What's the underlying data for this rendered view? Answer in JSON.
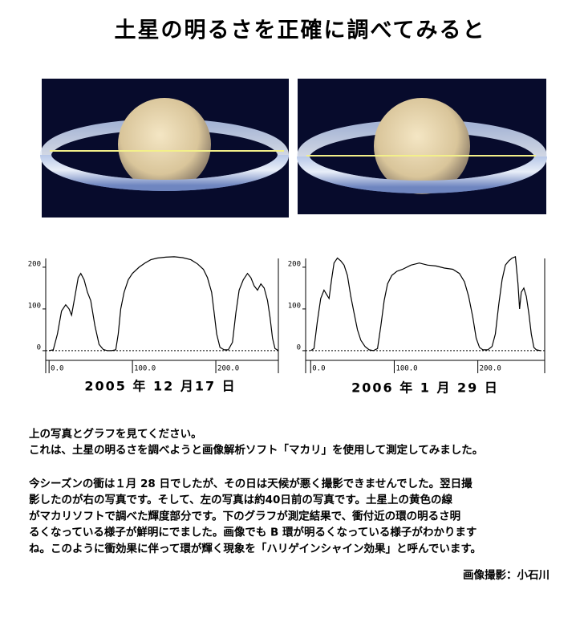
{
  "header": {
    "title": "土星の明るさを正確に調べてみると"
  },
  "chart_data": [
    {
      "type": "line",
      "title": "2005 年 12 月17 日",
      "color": "#000000",
      "x": [
        0,
        5,
        10,
        15,
        20,
        24,
        27,
        31,
        35,
        38,
        42,
        46,
        50,
        55,
        60,
        65,
        70,
        75,
        80,
        83,
        86,
        90,
        95,
        100,
        108,
        115,
        122,
        130,
        140,
        150,
        160,
        170,
        178,
        185,
        190,
        195,
        198,
        201,
        205,
        210,
        215,
        220,
        224,
        228,
        233,
        238,
        242,
        246,
        250,
        254,
        258,
        262,
        265,
        268,
        271,
        275
      ],
      "values": [
        0,
        2,
        40,
        95,
        110,
        100,
        85,
        130,
        175,
        185,
        170,
        140,
        120,
        60,
        15,
        3,
        0,
        0,
        2,
        40,
        100,
        140,
        170,
        185,
        200,
        210,
        218,
        222,
        224,
        225,
        223,
        218,
        208,
        195,
        175,
        140,
        90,
        40,
        8,
        2,
        2,
        20,
        90,
        145,
        170,
        185,
        175,
        155,
        145,
        160,
        150,
        120,
        80,
        30,
        5,
        0
      ],
      "xlim": [
        -4,
        275
      ],
      "ylim": [
        -54,
        221
      ],
      "xticks": [
        {
          "value": 0,
          "label": "0.0"
        },
        {
          "value": 100,
          "label": "100.0"
        },
        {
          "value": 200,
          "label": "200.0"
        }
      ],
      "yticks": [
        0,
        100,
        200
      ]
    },
    {
      "type": "line",
      "title": "2006 年 1 月 29 日",
      "color": "#000000",
      "x": [
        0,
        4,
        8,
        12,
        16,
        19,
        22,
        25,
        28,
        32,
        36,
        40,
        44,
        48,
        52,
        56,
        60,
        65,
        70,
        75,
        80,
        84,
        88,
        92,
        97,
        103,
        110,
        120,
        130,
        140,
        150,
        160,
        170,
        178,
        184,
        189,
        194,
        198,
        202,
        206,
        212,
        217,
        221,
        225,
        229,
        233,
        237,
        241,
        245,
        248,
        250,
        252,
        255,
        258,
        261,
        264,
        267,
        270,
        275
      ],
      "values": [
        0,
        5,
        70,
        125,
        145,
        135,
        125,
        170,
        210,
        222,
        215,
        205,
        180,
        130,
        90,
        50,
        25,
        10,
        2,
        0,
        5,
        60,
        120,
        160,
        180,
        190,
        195,
        205,
        210,
        205,
        203,
        198,
        195,
        185,
        165,
        130,
        80,
        30,
        8,
        2,
        2,
        10,
        40,
        110,
        170,
        205,
        215,
        222,
        225,
        160,
        100,
        140,
        150,
        130,
        90,
        40,
        8,
        2,
        0
      ],
      "xlim": [
        -6,
        280
      ],
      "ylim": [
        -54,
        221
      ],
      "xticks": [
        {
          "value": 0,
          "label": "0.0"
        },
        {
          "value": 100,
          "label": "100.0"
        },
        {
          "value": 200,
          "label": "200.0"
        }
      ],
      "yticks": [
        0,
        100,
        200
      ]
    }
  ],
  "paragraphs": [
    [
      "上の写真とグラフを見てください。",
      "これは、土星の明るさを調べようと画像解析ソフト「マカリ」を使用して測定してみました。"
    ],
    [
      "今シーズンの衝は１月 28 日でしたが、その日は天候が悪く撮影できませんでした。翌日撮",
      "影したのが右の写真です。そして、左の写真は約40日前の写真です。土星上の黄色の線",
      "がマカリソフトで調べた輝度部分です。下のグラフが測定結果で、衝付近の環の明るさ明",
      "るくなっている様子が鮮明にでました。画像でも B 環が明るくなっている様子がわかります",
      "ね。このように衝効果に伴って環が輝く現象を「ハリゲインシャイン効果」と呼んでいます。"
    ]
  ],
  "credit": "画像撮影：小石川"
}
